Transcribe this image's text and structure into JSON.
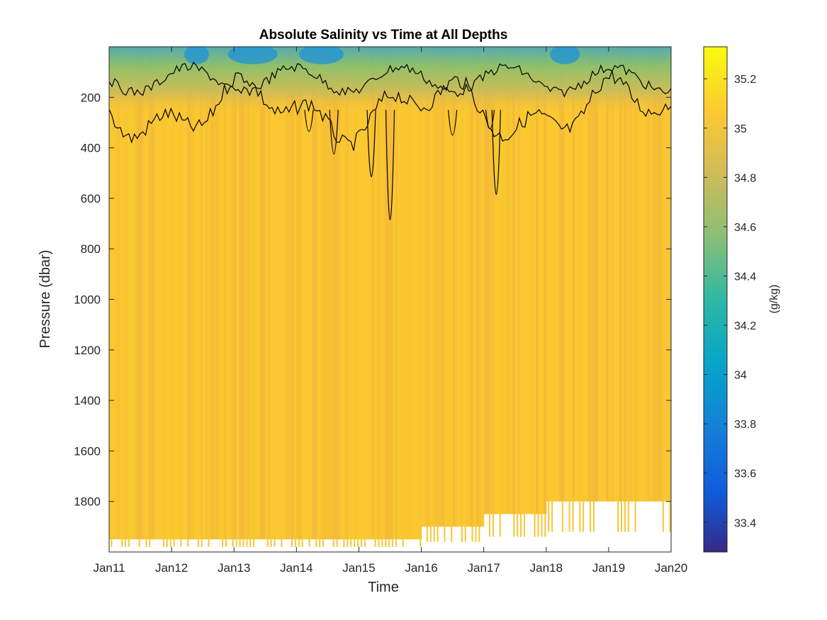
{
  "chart_data": {
    "type": "heatmap",
    "title": "Absolute Salinity vs Time at All Depths",
    "xlabel": "Time",
    "ylabel": "Pressure (dbar)",
    "colorbar_label": "(g/kg)",
    "x_ticks": [
      "Jan11",
      "Jan12",
      "Jan13",
      "Jan14",
      "Jan15",
      "Jan16",
      "Jan17",
      "Jan18",
      "Jan19",
      "Jan20"
    ],
    "xlim": [
      "Jan11",
      "Jan20"
    ],
    "y_ticks": [
      "200",
      "400",
      "600",
      "800",
      "1000",
      "1200",
      "1400",
      "1600",
      "1800"
    ],
    "ylim": [
      0,
      2000
    ],
    "y_reversed": true,
    "colorbar_ticks": [
      "33.4",
      "33.6",
      "33.8",
      "34",
      "34.2",
      "34.4",
      "34.6",
      "34.8",
      "35",
      "35.2"
    ],
    "clim": [
      33.28,
      35.33
    ],
    "colormap": "parula",
    "deep_value": 35.08,
    "surface_min_value": 33.9,
    "max_depth_by_day": [
      {
        "day": "Jan11",
        "max_pressure": 1950
      },
      {
        "day": "Jan12",
        "max_pressure": 1950
      },
      {
        "day": "Jan13",
        "max_pressure": 1950
      },
      {
        "day": "Jan14",
        "max_pressure": 1950
      },
      {
        "day": "Jan15",
        "max_pressure": 1950
      },
      {
        "day": "Jan16",
        "max_pressure": 1900
      },
      {
        "day": "Jan17",
        "max_pressure": 1850
      },
      {
        "day": "Jan18",
        "max_pressure": 1800
      },
      {
        "day": "Jan19",
        "max_pressure": 1800
      }
    ],
    "contour_color": "#000000",
    "grid": false
  }
}
